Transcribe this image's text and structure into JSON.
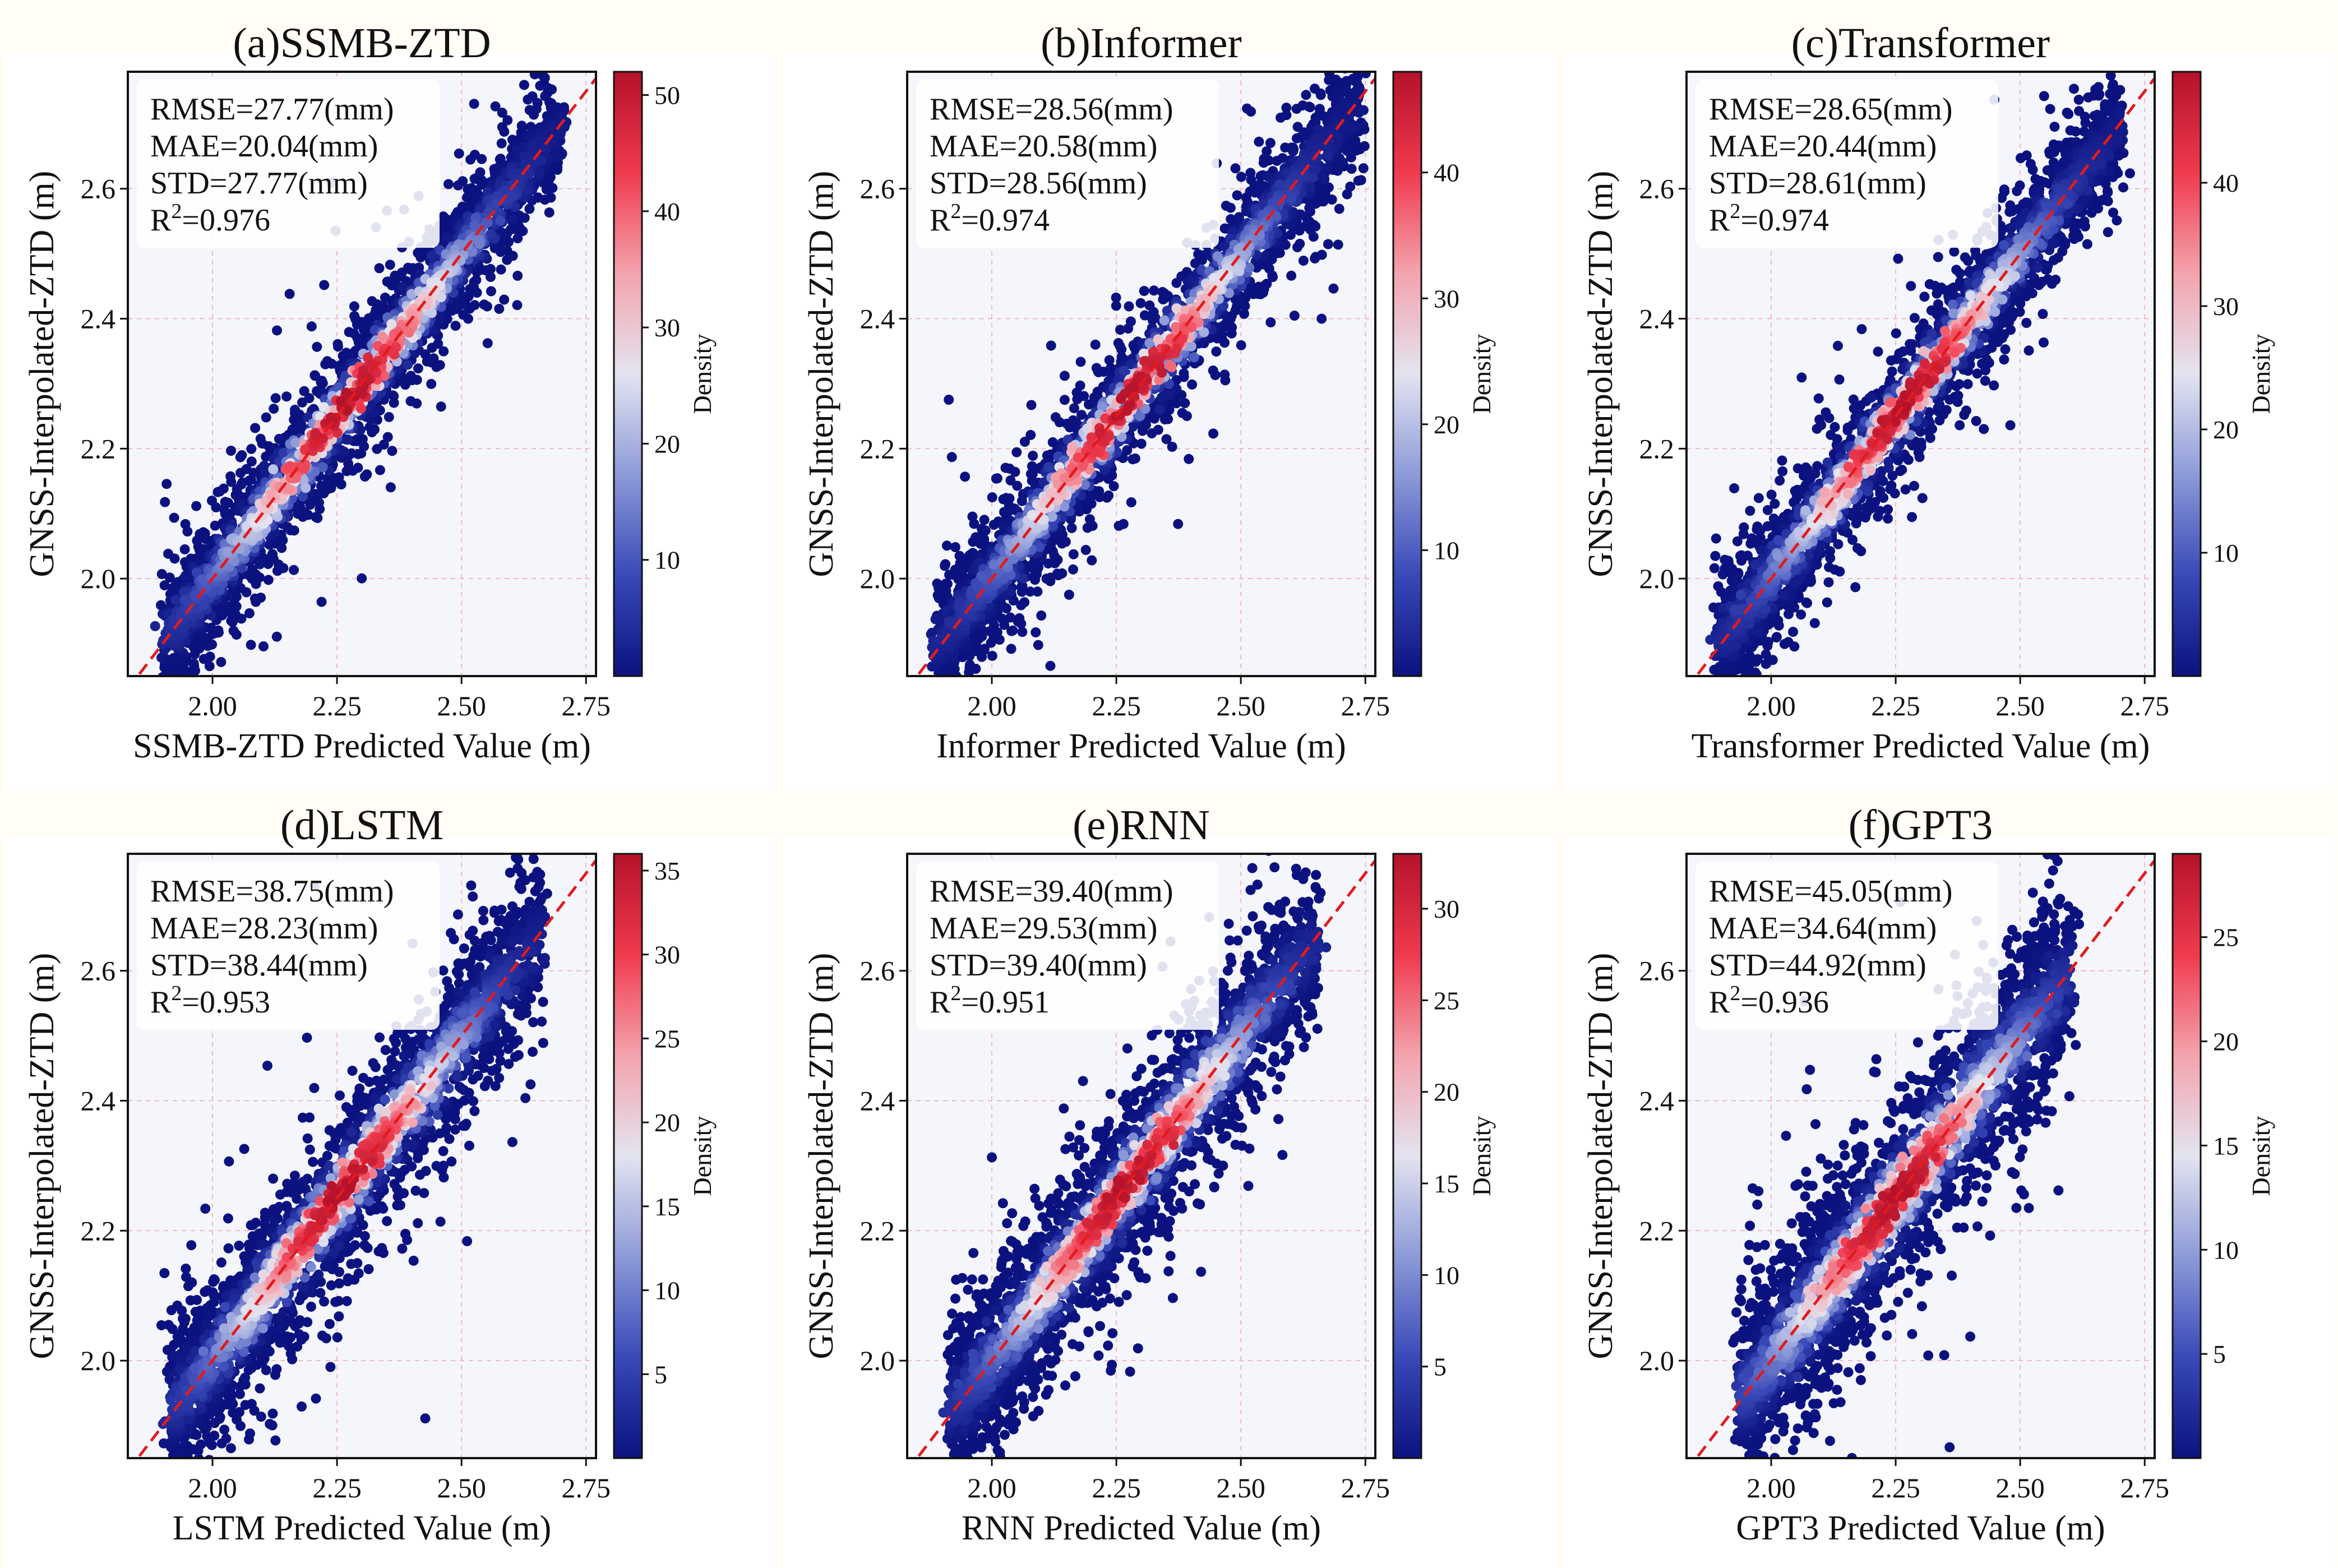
{
  "figure": {
    "colorbar_label": "Density",
    "regression_line_color": "#e31a1c",
    "colormap": [
      "#0b1280",
      "#3949b8",
      "#8d9ad8",
      "#e3e4f0",
      "#f3a3ad",
      "#f03a4e",
      "#b5122a"
    ],
    "background_color": "#f4f6fc"
  },
  "chart_data": [
    {
      "type": "scatter",
      "panel": "(a)",
      "title": "(a)SSMB-ZTD",
      "xlabel": "SSMB-ZTD Predicted Value (m)",
      "ylabel": "GNSS-Interpolated-ZTD (m)",
      "xlim": [
        1.83,
        2.77
      ],
      "ylim": [
        1.85,
        2.78
      ],
      "xticks": [
        "2.00",
        "2.25",
        "2.50",
        "2.75"
      ],
      "yticks": [
        "2.0",
        "2.2",
        "2.4",
        "2.6"
      ],
      "stats": [
        "RMSE=27.77(mm)",
        "MAE=20.04(mm)",
        "STD=27.77(mm)"
      ],
      "r2_value": "=0.976",
      "colorbar": {
        "max": 52,
        "ticks": [
          10,
          20,
          30,
          40,
          50
        ]
      },
      "point_cloud": {
        "x_range": [
          1.91,
          2.7
        ],
        "spread_m": 0.045,
        "max_density": 52,
        "peak_x": 2.27,
        "outlier_spread_m": 0.12
      }
    },
    {
      "type": "scatter",
      "panel": "(b)",
      "title": "(b)Informer",
      "xlabel": "Informer Predicted Value (m)",
      "ylabel": "GNSS-Interpolated-ZTD (m)",
      "xlim": [
        1.83,
        2.77
      ],
      "ylim": [
        1.85,
        2.78
      ],
      "xticks": [
        "2.00",
        "2.25",
        "2.50",
        "2.75"
      ],
      "yticks": [
        "2.0",
        "2.2",
        "2.4",
        "2.6"
      ],
      "stats": [
        "RMSE=28.56(mm)",
        "MAE=20.58(mm)",
        "STD=28.56(mm)"
      ],
      "r2_value": "=0.974",
      "colorbar": {
        "max": 48,
        "ticks": [
          10,
          20,
          30,
          40
        ]
      },
      "point_cloud": {
        "x_range": [
          1.89,
          2.74
        ],
        "spread_m": 0.047,
        "max_density": 48,
        "peak_x": 2.28,
        "outlier_spread_m": 0.12
      }
    },
    {
      "type": "scatter",
      "panel": "(c)",
      "title": "(c)Transformer",
      "xlabel": "Transformer Predicted Value (m)",
      "ylabel": "GNSS-Interpolated-ZTD (m)",
      "xlim": [
        1.83,
        2.77
      ],
      "ylim": [
        1.85,
        2.78
      ],
      "xticks": [
        "2.00",
        "2.25",
        "2.50",
        "2.75"
      ],
      "yticks": [
        "2.0",
        "2.2",
        "2.4",
        "2.6"
      ],
      "stats": [
        "RMSE=28.65(mm)",
        "MAE=20.44(mm)",
        "STD=28.61(mm)"
      ],
      "r2_value": "=0.974",
      "colorbar": {
        "max": 49,
        "ticks": [
          10,
          20,
          30,
          40
        ]
      },
      "point_cloud": {
        "x_range": [
          1.9,
          2.7
        ],
        "spread_m": 0.047,
        "max_density": 49,
        "peak_x": 2.27,
        "outlier_spread_m": 0.12
      }
    },
    {
      "type": "scatter",
      "panel": "(d)",
      "title": "(d)LSTM",
      "xlabel": "LSTM Predicted Value (m)",
      "ylabel": "GNSS-Interpolated-ZTD (m)",
      "xlim": [
        1.83,
        2.77
      ],
      "ylim": [
        1.85,
        2.78
      ],
      "xticks": [
        "2.00",
        "2.25",
        "2.50",
        "2.75"
      ],
      "yticks": [
        "2.0",
        "2.2",
        "2.4",
        "2.6"
      ],
      "stats": [
        "RMSE=38.75(mm)",
        "MAE=28.23(mm)",
        "STD=38.44(mm)"
      ],
      "r2_value": "=0.953",
      "colorbar": {
        "max": 36,
        "ticks": [
          5,
          10,
          15,
          20,
          25,
          30,
          35
        ]
      },
      "point_cloud": {
        "x_range": [
          1.92,
          2.66
        ],
        "spread_m": 0.06,
        "max_density": 36,
        "peak_x": 2.26,
        "outlier_spread_m": 0.14
      }
    },
    {
      "type": "scatter",
      "panel": "(e)",
      "title": "(e)RNN",
      "xlabel": "RNN Predicted Value (m)",
      "ylabel": "GNSS-Interpolated-ZTD (m)",
      "xlim": [
        1.83,
        2.77
      ],
      "ylim": [
        1.85,
        2.78
      ],
      "xticks": [
        "2.00",
        "2.25",
        "2.50",
        "2.75"
      ],
      "yticks": [
        "2.0",
        "2.2",
        "2.4",
        "2.6"
      ],
      "stats": [
        "RMSE=39.40(mm)",
        "MAE=29.53(mm)",
        "STD=39.40(mm)"
      ],
      "r2_value": "=0.951",
      "colorbar": {
        "max": 33,
        "ticks": [
          5,
          10,
          15,
          20,
          25,
          30
        ]
      },
      "point_cloud": {
        "x_range": [
          1.92,
          2.65
        ],
        "spread_m": 0.062,
        "max_density": 33,
        "peak_x": 2.27,
        "outlier_spread_m": 0.14
      }
    },
    {
      "type": "scatter",
      "panel": "(f)",
      "title": "(f)GPT3",
      "xlabel": "GPT3 Predicted Value (m)",
      "ylabel": "GNSS-Interpolated-ZTD (m)",
      "xlim": [
        1.83,
        2.77
      ],
      "ylim": [
        1.85,
        2.78
      ],
      "xticks": [
        "2.00",
        "2.25",
        "2.50",
        "2.75"
      ],
      "yticks": [
        "2.0",
        "2.2",
        "2.4",
        "2.6"
      ],
      "stats": [
        "RMSE=45.05(mm)",
        "MAE=34.64(mm)",
        "STD=44.92(mm)"
      ],
      "r2_value": "=0.936",
      "colorbar": {
        "max": 29,
        "ticks": [
          5,
          10,
          15,
          20,
          25
        ]
      },
      "point_cloud": {
        "x_range": [
          1.94,
          2.6
        ],
        "spread_m": 0.07,
        "max_density": 29,
        "peak_x": 2.25,
        "outlier_spread_m": 0.16
      }
    }
  ]
}
